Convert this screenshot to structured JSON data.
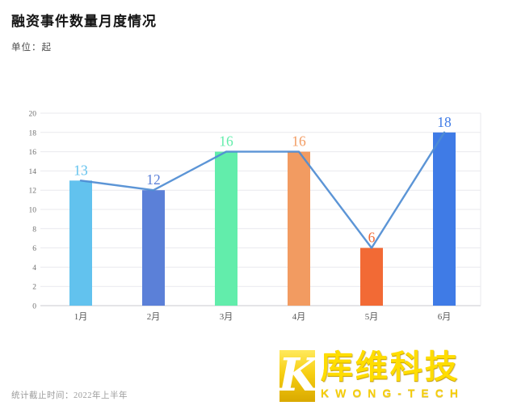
{
  "header": {
    "title": "融资事件数量月度情况",
    "subtitle": "单位：起"
  },
  "footer": {
    "note": "统计截止时间：2022年上半年"
  },
  "logo": {
    "mark_letter": "K",
    "name": "库维科技",
    "eng": "KWONG-TECH",
    "gold": "#FFDD00"
  },
  "chart_data": {
    "type": "bar",
    "overlay": "line",
    "title": "融资事件数量月度情况",
    "unit": "起",
    "categories": [
      "1月",
      "2月",
      "3月",
      "4月",
      "5月",
      "6月"
    ],
    "values": [
      13,
      12,
      16,
      16,
      6,
      18
    ],
    "bar_colors": [
      "#62C2EE",
      "#5B80D8",
      "#62EDAB",
      "#F29B61",
      "#F26A35",
      "#3F7BE6"
    ],
    "line_color": "#4E8CD2",
    "value_label_colors": [
      "#62C2EE",
      "#5B80D8",
      "#62EDAB",
      "#F29B61",
      "#F26A35",
      "#3F7BE6"
    ],
    "ylim": [
      0,
      20
    ],
    "ytick_step": 2,
    "grid": true,
    "legend": "none",
    "axis_text_color": "#707070",
    "xlabel_color": "#555555",
    "grid_color": "#e9e9ee",
    "baseline_color": "#c9c9cf"
  }
}
